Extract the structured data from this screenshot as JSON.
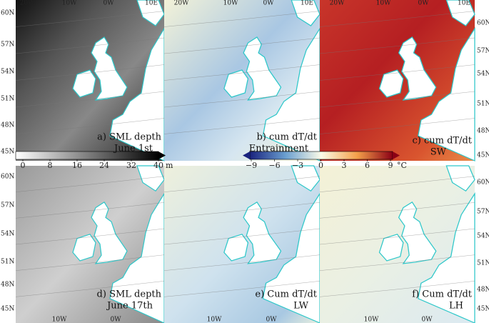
{
  "panels": [
    {
      "label": "a) SML depth",
      "sublabel": "June 1st"
    },
    {
      "label": "b) cum dT/dt",
      "sublabel": "Entrainment"
    },
    {
      "label": "c) cum dT/dt",
      "sublabel": "SW"
    },
    {
      "label": "d) SML depth",
      "sublabel": "June 17th"
    },
    {
      "label": "e) Cum dT/dt",
      "sublabel": "LW"
    },
    {
      "label": "f) Cum dT/dt",
      "sublabel": "LH"
    }
  ],
  "lat_labels": [
    "60N",
    "57N",
    "54N",
    "51N",
    "48N",
    "45N"
  ],
  "lon_labels_top": [
    "20W",
    "10W",
    "0W",
    "10E"
  ],
  "lon_labels_bottom": [
    "10W",
    "0W"
  ],
  "colorbars": [
    {
      "ticks": [
        "0",
        "8",
        "16",
        "24",
        "32",
        "40"
      ],
      "unit": "m"
    },
    {
      "ticks": [
        "−9",
        "−6",
        "−3",
        "0",
        "3",
        "6",
        "9"
      ],
      "unit": "°C"
    }
  ]
}
